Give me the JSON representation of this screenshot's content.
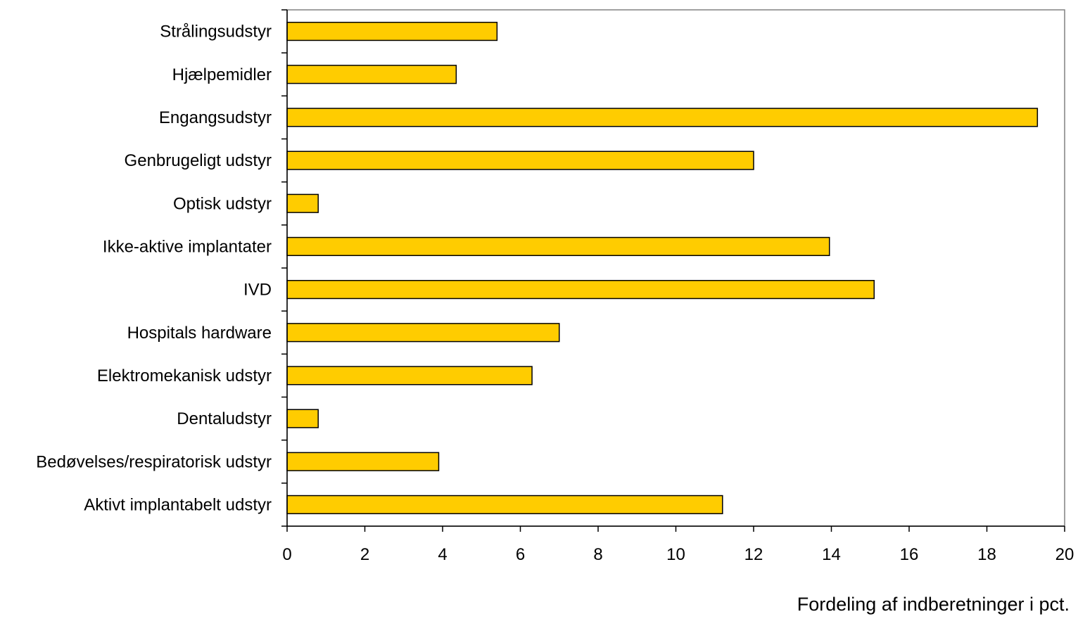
{
  "chart_data": {
    "type": "bar",
    "orientation": "horizontal",
    "categories": [
      "Strålingsudstyr",
      "Hjælpemidler",
      "Engangsudstyr",
      "Genbrugeligt udstyr",
      "Optisk udstyr",
      "Ikke-aktive implantater",
      "IVD",
      "Hospitals hardware",
      "Elektromekanisk udstyr",
      "Dentaludstyr",
      "Bedøvelses/respiratorisk udstyr",
      "Aktivt implantabelt udstyr"
    ],
    "values": [
      5.4,
      4.35,
      19.3,
      12.0,
      0.8,
      13.95,
      15.1,
      7.0,
      6.3,
      0.8,
      3.9,
      11.2
    ],
    "title": "",
    "xlabel": "Fordeling af indberetninger i pct.",
    "ylabel": "",
    "xlim": [
      0,
      20
    ],
    "x_ticks": [
      "0",
      "2",
      "4",
      "6",
      "8",
      "10",
      "12",
      "14",
      "16",
      "18",
      "20"
    ],
    "grid": false,
    "legend": "none",
    "colors": {
      "bar_fill": "#FFCC00",
      "bar_stroke": "#000000",
      "axis": "#000000",
      "plot_border": "#808080"
    }
  }
}
